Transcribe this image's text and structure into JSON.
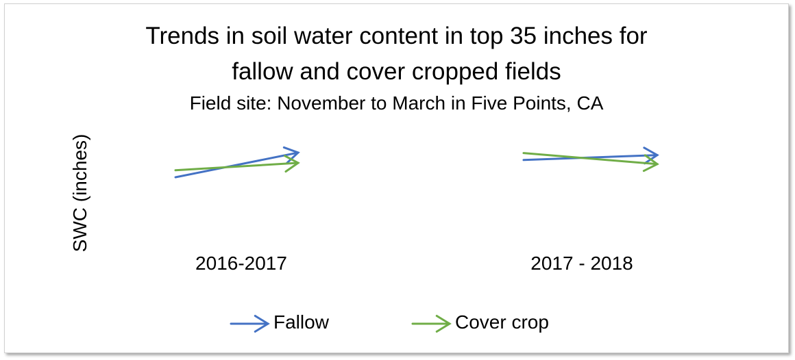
{
  "chart_data": {
    "type": "line",
    "title_line1": "Trends in soil water content in top 35 inches for",
    "title_line2": "fallow and cover cropped fields",
    "subtitle": "Field site: November to March in Five Points, CA",
    "ylabel": "SWC (inches)",
    "xlabel": "",
    "categories": [
      "2016-2017",
      "2017 - 2018"
    ],
    "series": [
      {
        "name": "Fallow",
        "color": "#4472C4",
        "segments": [
          {
            "category": "2016-2017",
            "start": 0.2,
            "end": 0.8
          },
          {
            "category": "2017 - 2018",
            "start": 0.62,
            "end": 0.74
          }
        ]
      },
      {
        "name": "Cover crop",
        "color": "#70AD47",
        "segments": [
          {
            "category": "2016-2017",
            "start": 0.37,
            "end": 0.55
          },
          {
            "category": "2017 - 2018",
            "start": 0.79,
            "end": 0.52
          }
        ]
      }
    ],
    "legend_position": "bottom",
    "grid": false,
    "axes_visible": false,
    "marker": "arrow"
  }
}
